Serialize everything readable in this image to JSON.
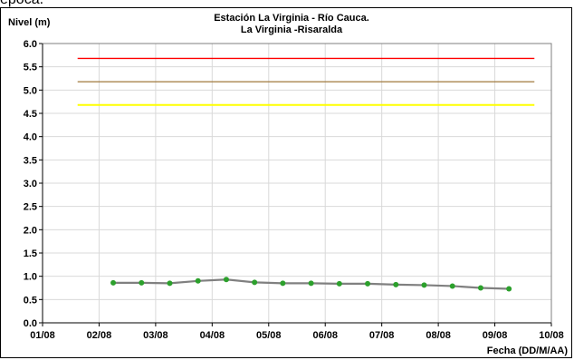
{
  "caption_fragment": "época.",
  "chart_data": {
    "type": "line",
    "title_line1": "Estación La Virginia  - Río Cauca.",
    "title_line2": "La Virginia -Risaralda",
    "ylabel": "Nivel (m)",
    "xlabel": "Fecha (DD/M/AA)",
    "ylim": [
      0,
      6
    ],
    "yticks": [
      "0.0",
      "0.5",
      "1.0",
      "1.5",
      "2.0",
      "2.5",
      "3.0",
      "3.5",
      "4.0",
      "4.5",
      "5.0",
      "5.5",
      "6.0"
    ],
    "xlim": [
      0,
      9
    ],
    "xticks": [
      "01/08",
      "02/08",
      "03/08",
      "04/08",
      "05/08",
      "06/08",
      "07/08",
      "08/08",
      "09/08",
      "10/08"
    ],
    "grid": true,
    "threshold_lines": [
      {
        "value": 5.68,
        "color": "#ff0000"
      },
      {
        "value": 5.18,
        "color": "#a0783c"
      },
      {
        "value": 4.68,
        "color": "#ffff00"
      }
    ],
    "series": [
      {
        "line_color": "#808080",
        "marker_color": "#2ca02c",
        "x": [
          1.25,
          1.75,
          2.25,
          2.75,
          3.25,
          3.75,
          4.25,
          4.75,
          5.25,
          5.75,
          6.25,
          6.75,
          7.25,
          7.75,
          8.25
        ],
        "values": [
          0.86,
          0.86,
          0.85,
          0.9,
          0.93,
          0.87,
          0.85,
          0.85,
          0.84,
          0.84,
          0.82,
          0.81,
          0.79,
          0.75,
          0.73
        ]
      }
    ]
  }
}
